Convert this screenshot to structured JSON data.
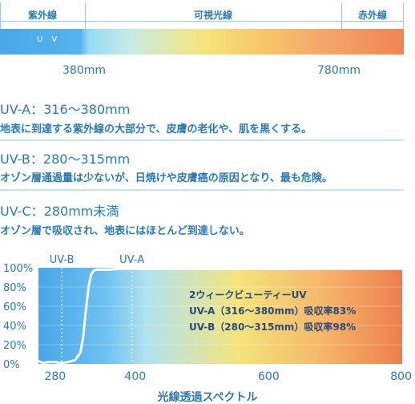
{
  "bands": {
    "uv": "紫外線",
    "visible": "可視光線",
    "ir": "赤外線",
    "uv_bar_label": "U V",
    "nm_left": "380mm",
    "nm_right": "780mm"
  },
  "sections": [
    {
      "title": "UV-A：316〜380mm",
      "desc": "地表に到達する紫外線の大部分で、皮膚の老化や、肌を黒くする。"
    },
    {
      "title": "UV-B：280〜315mm",
      "desc": "オゾン層通過量は少ないが、日焼けや皮膚癌の原因となり、最も危険。"
    },
    {
      "title": "UV-C：280mm未満",
      "desc": "オゾン層で吸収され、地表にはほとんど到達しない。"
    }
  ],
  "colors": {
    "text": "#2a7ab8",
    "curve": "#ffffff"
  },
  "chart_data": {
    "type": "line",
    "xlabel": "光線透過スペクトル",
    "ylabel": "",
    "xlim": [
      255,
      800
    ],
    "ylim": [
      0,
      100
    ],
    "x_ticks": [
      280,
      400,
      600,
      800
    ],
    "y_ticks": [
      "0%",
      "20%",
      "40%",
      "60%",
      "80%",
      "100%"
    ],
    "markers": [
      {
        "label": "UV-B",
        "x": 290
      },
      {
        "label": "UV-A",
        "x": 395
      }
    ],
    "annotations": [
      "2ウィークビューティーUV",
      "UV-A（316〜380mm）吸収率83%",
      "UV-B（280〜315mm）吸収率98%"
    ],
    "series": [
      {
        "x": [
          255,
          262,
          270,
          280,
          290,
          300,
          310,
          318,
          322,
          326,
          330,
          334,
          338,
          342,
          348,
          360,
          380,
          420,
          500,
          600,
          700,
          800
        ],
        "y": [
          3,
          1,
          2,
          2,
          1,
          2,
          4,
          12,
          28,
          55,
          80,
          93,
          97,
          98,
          98,
          98,
          99,
          99,
          99,
          99,
          99,
          99
        ]
      }
    ]
  }
}
